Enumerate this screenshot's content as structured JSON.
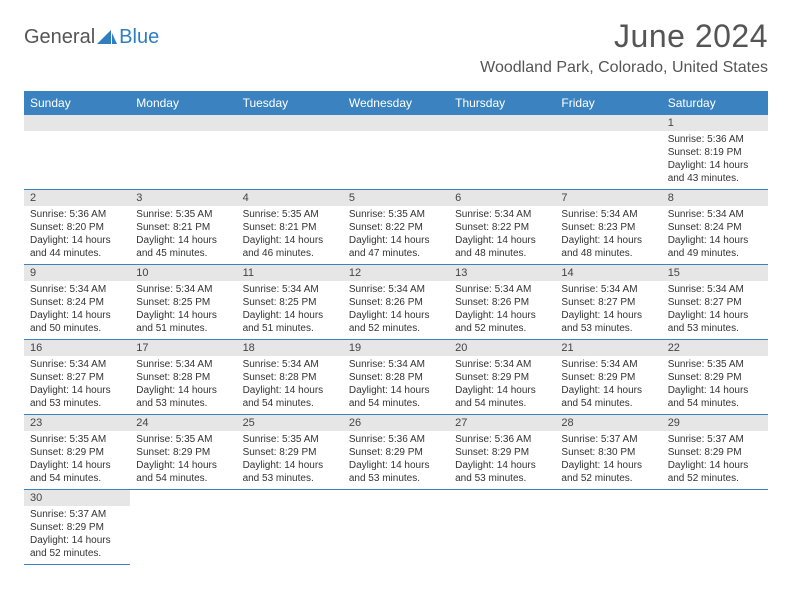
{
  "brand": {
    "part1": "General",
    "part2": "Blue"
  },
  "title": "June 2024",
  "location": "Woodland Park, Colorado, United States",
  "colors": {
    "header_bg": "#3b83c0",
    "header_text": "#ffffff",
    "daynum_bg": "#e6e6e6",
    "border": "#3b83c0",
    "brand_gray": "#555555",
    "brand_blue": "#2f7ec0"
  },
  "weekdays": [
    "Sunday",
    "Monday",
    "Tuesday",
    "Wednesday",
    "Thursday",
    "Friday",
    "Saturday"
  ],
  "days": {
    "1": {
      "sunrise": "5:36 AM",
      "sunset": "8:19 PM",
      "daylight": "14 hours and 43 minutes."
    },
    "2": {
      "sunrise": "5:36 AM",
      "sunset": "8:20 PM",
      "daylight": "14 hours and 44 minutes."
    },
    "3": {
      "sunrise": "5:35 AM",
      "sunset": "8:21 PM",
      "daylight": "14 hours and 45 minutes."
    },
    "4": {
      "sunrise": "5:35 AM",
      "sunset": "8:21 PM",
      "daylight": "14 hours and 46 minutes."
    },
    "5": {
      "sunrise": "5:35 AM",
      "sunset": "8:22 PM",
      "daylight": "14 hours and 47 minutes."
    },
    "6": {
      "sunrise": "5:34 AM",
      "sunset": "8:22 PM",
      "daylight": "14 hours and 48 minutes."
    },
    "7": {
      "sunrise": "5:34 AM",
      "sunset": "8:23 PM",
      "daylight": "14 hours and 48 minutes."
    },
    "8": {
      "sunrise": "5:34 AM",
      "sunset": "8:24 PM",
      "daylight": "14 hours and 49 minutes."
    },
    "9": {
      "sunrise": "5:34 AM",
      "sunset": "8:24 PM",
      "daylight": "14 hours and 50 minutes."
    },
    "10": {
      "sunrise": "5:34 AM",
      "sunset": "8:25 PM",
      "daylight": "14 hours and 51 minutes."
    },
    "11": {
      "sunrise": "5:34 AM",
      "sunset": "8:25 PM",
      "daylight": "14 hours and 51 minutes."
    },
    "12": {
      "sunrise": "5:34 AM",
      "sunset": "8:26 PM",
      "daylight": "14 hours and 52 minutes."
    },
    "13": {
      "sunrise": "5:34 AM",
      "sunset": "8:26 PM",
      "daylight": "14 hours and 52 minutes."
    },
    "14": {
      "sunrise": "5:34 AM",
      "sunset": "8:27 PM",
      "daylight": "14 hours and 53 minutes."
    },
    "15": {
      "sunrise": "5:34 AM",
      "sunset": "8:27 PM",
      "daylight": "14 hours and 53 minutes."
    },
    "16": {
      "sunrise": "5:34 AM",
      "sunset": "8:27 PM",
      "daylight": "14 hours and 53 minutes."
    },
    "17": {
      "sunrise": "5:34 AM",
      "sunset": "8:28 PM",
      "daylight": "14 hours and 53 minutes."
    },
    "18": {
      "sunrise": "5:34 AM",
      "sunset": "8:28 PM",
      "daylight": "14 hours and 54 minutes."
    },
    "19": {
      "sunrise": "5:34 AM",
      "sunset": "8:28 PM",
      "daylight": "14 hours and 54 minutes."
    },
    "20": {
      "sunrise": "5:34 AM",
      "sunset": "8:29 PM",
      "daylight": "14 hours and 54 minutes."
    },
    "21": {
      "sunrise": "5:34 AM",
      "sunset": "8:29 PM",
      "daylight": "14 hours and 54 minutes."
    },
    "22": {
      "sunrise": "5:35 AM",
      "sunset": "8:29 PM",
      "daylight": "14 hours and 54 minutes."
    },
    "23": {
      "sunrise": "5:35 AM",
      "sunset": "8:29 PM",
      "daylight": "14 hours and 54 minutes."
    },
    "24": {
      "sunrise": "5:35 AM",
      "sunset": "8:29 PM",
      "daylight": "14 hours and 54 minutes."
    },
    "25": {
      "sunrise": "5:35 AM",
      "sunset": "8:29 PM",
      "daylight": "14 hours and 53 minutes."
    },
    "26": {
      "sunrise": "5:36 AM",
      "sunset": "8:29 PM",
      "daylight": "14 hours and 53 minutes."
    },
    "27": {
      "sunrise": "5:36 AM",
      "sunset": "8:29 PM",
      "daylight": "14 hours and 53 minutes."
    },
    "28": {
      "sunrise": "5:37 AM",
      "sunset": "8:30 PM",
      "daylight": "14 hours and 52 minutes."
    },
    "29": {
      "sunrise": "5:37 AM",
      "sunset": "8:29 PM",
      "daylight": "14 hours and 52 minutes."
    },
    "30": {
      "sunrise": "5:37 AM",
      "sunset": "8:29 PM",
      "daylight": "14 hours and 52 minutes."
    }
  },
  "labels": {
    "sunrise_prefix": "Sunrise: ",
    "sunset_prefix": "Sunset: ",
    "daylight_prefix": "Daylight: "
  },
  "grid": [
    [
      null,
      null,
      null,
      null,
      null,
      null,
      "1"
    ],
    [
      "2",
      "3",
      "4",
      "5",
      "6",
      "7",
      "8"
    ],
    [
      "9",
      "10",
      "11",
      "12",
      "13",
      "14",
      "15"
    ],
    [
      "16",
      "17",
      "18",
      "19",
      "20",
      "21",
      "22"
    ],
    [
      "23",
      "24",
      "25",
      "26",
      "27",
      "28",
      "29"
    ],
    [
      "30",
      null,
      null,
      null,
      null,
      null,
      null
    ]
  ]
}
